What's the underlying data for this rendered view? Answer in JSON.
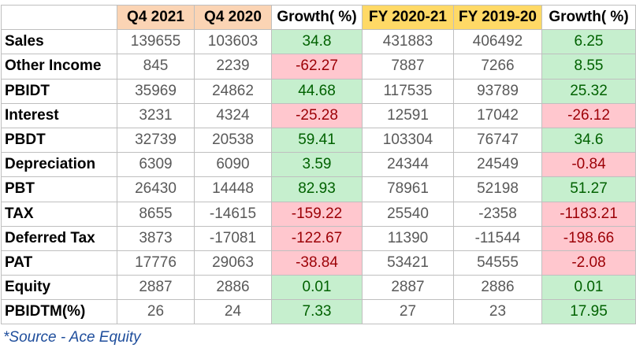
{
  "table": {
    "headers": [
      "Q4 2021",
      "Q4 2020",
      "Growth( %)",
      "FY 2020-21",
      "FY 2019-20",
      "Growth( %)"
    ],
    "rows": [
      {
        "label": "Sales",
        "values": [
          139655,
          103603,
          34.8,
          431883,
          406492,
          6.25
        ]
      },
      {
        "label": "Other Income",
        "values": [
          845,
          2239,
          -62.27,
          7887,
          7266,
          8.55
        ]
      },
      {
        "label": "PBIDT",
        "values": [
          35969,
          24862,
          44.68,
          117535,
          93789,
          25.32
        ]
      },
      {
        "label": "Interest",
        "values": [
          3231,
          4324,
          -25.28,
          12591,
          17042,
          -26.12
        ]
      },
      {
        "label": "PBDT",
        "values": [
          32739,
          20538,
          59.41,
          103304,
          76747,
          34.6
        ]
      },
      {
        "label": "Depreciation",
        "values": [
          6309,
          6090,
          3.59,
          24344,
          24549,
          -0.84
        ]
      },
      {
        "label": "PBT",
        "values": [
          26430,
          14448,
          82.93,
          78961,
          52198,
          51.27
        ]
      },
      {
        "label": "TAX",
        "values": [
          8655,
          -14615,
          -159.22,
          25540,
          -2358,
          -1183.21
        ]
      },
      {
        "label": "Deferred Tax",
        "values": [
          3873,
          -17081,
          -122.67,
          11390,
          -11544,
          -198.66
        ]
      },
      {
        "label": "PAT",
        "values": [
          17776,
          29063,
          -38.84,
          53421,
          54555,
          -2.08
        ]
      },
      {
        "label": "Equity",
        "values": [
          2887,
          2886,
          0.01,
          2887,
          2886,
          0.01
        ]
      },
      {
        "label": "PBIDTM(%)",
        "values": [
          26,
          24,
          7.33,
          27,
          23,
          17.95
        ]
      }
    ]
  },
  "footer": {
    "source": "*Source - Ace Equity"
  }
}
